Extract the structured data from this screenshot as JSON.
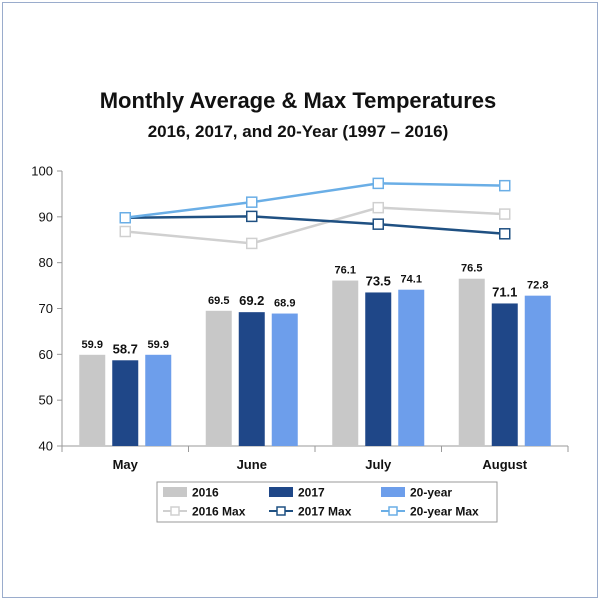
{
  "chart_data": {
    "type": "bar",
    "title": "Monthly Average & Max Temperatures",
    "subtitle": "2016, 2017, and 20-Year (1997 – 2016)",
    "xlabel": "",
    "ylabel": "",
    "ylim": [
      40,
      100
    ],
    "yticks": [
      40,
      50,
      60,
      70,
      80,
      90,
      100
    ],
    "grid": false,
    "legend_position": "bottom",
    "categories": [
      "May",
      "June",
      "July",
      "August"
    ],
    "series": [
      {
        "name": "2016",
        "kind": "bar",
        "color": "#c8c8c8",
        "values": [
          59.9,
          69.5,
          76.1,
          76.5
        ],
        "labels": [
          "59.9",
          "69.5",
          "76.1",
          "76.5"
        ]
      },
      {
        "name": "2017",
        "kind": "bar",
        "color": "#1f4788",
        "values": [
          58.7,
          69.2,
          73.5,
          71.1
        ],
        "labels": [
          "58.7",
          "69.2",
          "73.5",
          "71.1"
        ]
      },
      {
        "name": "20-year",
        "kind": "bar",
        "color": "#6d9eeb",
        "values": [
          59.9,
          68.9,
          74.1,
          72.8
        ],
        "labels": [
          "59.9",
          "68.9",
          "74.1",
          "72.8"
        ]
      },
      {
        "name": "2016 Max",
        "kind": "line",
        "color": "#d0d0d0",
        "values": [
          86.8,
          84.2,
          92.0,
          90.6
        ]
      },
      {
        "name": "2017 Max",
        "kind": "line",
        "color": "#1f5082",
        "values": [
          89.8,
          90.1,
          88.4,
          86.3
        ]
      },
      {
        "name": "20-year Max",
        "kind": "line",
        "color": "#6aaee6",
        "values": [
          89.8,
          93.2,
          97.3,
          96.8
        ]
      }
    ]
  }
}
